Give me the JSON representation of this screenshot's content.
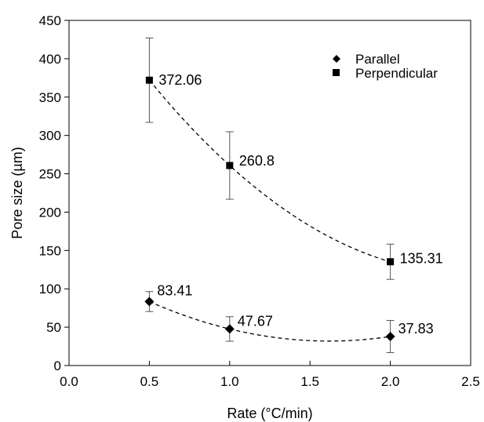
{
  "chart_data": {
    "type": "scatter",
    "title": "",
    "xlabel": "Rate (°C/min)",
    "ylabel": "Pore size (µm)",
    "xlim": [
      0.0,
      2.5
    ],
    "ylim": [
      0,
      450
    ],
    "xticks": [
      "0.0",
      "0.5",
      "1.0",
      "1.5",
      "2.0",
      "2.5"
    ],
    "yticks": [
      "0",
      "50",
      "100",
      "150",
      "200",
      "250",
      "300",
      "350",
      "400",
      "450"
    ],
    "grid": false,
    "legend_position": "top-right",
    "series": [
      {
        "name": "Parallel",
        "marker": "diamond",
        "trendline": "dashed",
        "x": [
          0.5,
          1.0,
          2.0
        ],
        "y": [
          83.41,
          47.67,
          37.83
        ],
        "error": [
          13,
          16,
          21
        ],
        "labels": [
          "83.41",
          "47.67",
          "37.83"
        ]
      },
      {
        "name": "Perpendicular",
        "marker": "square",
        "trendline": "dashed",
        "x": [
          0.5,
          1.0,
          2.0
        ],
        "y": [
          372.06,
          260.8,
          135.31
        ],
        "error": [
          55,
          44,
          23
        ],
        "labels": [
          "372.06",
          "260.8",
          "135.31"
        ]
      }
    ]
  },
  "colors": {
    "ink": "#000000",
    "background": "#ffffff"
  }
}
